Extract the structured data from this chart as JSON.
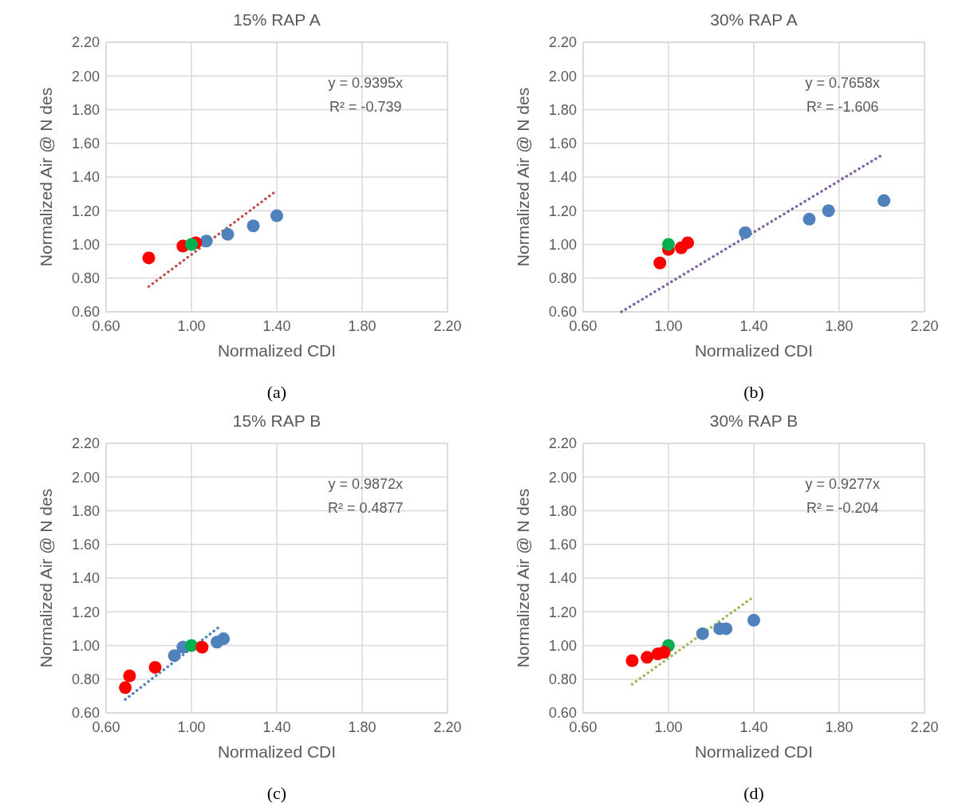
{
  "chart_data": [
    {
      "type": "scatter",
      "title": "15% RAP A",
      "xlabel": "Normalized CDI",
      "ylabel": "Normalized Air @ N des",
      "xlim": [
        0.6,
        2.2
      ],
      "xticks": [
        {
          "value": 0.6,
          "label": "0.60"
        },
        {
          "value": 1.0,
          "label": "1.00"
        },
        {
          "value": 1.4,
          "label": "1.40"
        },
        {
          "value": 1.8,
          "label": "1.80"
        },
        {
          "value": 2.2,
          "label": "2.20"
        }
      ],
      "ylim": [
        0.6,
        2.2
      ],
      "yticks": [
        {
          "value": 0.6,
          "label": "0.60"
        },
        {
          "value": 0.8,
          "label": "0.80"
        },
        {
          "value": 1.0,
          "label": "1.00"
        },
        {
          "value": 1.2,
          "label": "1.20"
        },
        {
          "value": 1.4,
          "label": "1.40"
        },
        {
          "value": 1.6,
          "label": "1.60"
        },
        {
          "value": 1.8,
          "label": "1.80"
        },
        {
          "value": 2.0,
          "label": "2.00"
        },
        {
          "value": 2.2,
          "label": "2.20"
        }
      ],
      "grid": true,
      "marker": "circle",
      "annotations": [
        "y = 0.9395x",
        "R² = -0.739",
        "(a)"
      ],
      "series": [
        {
          "type": "line",
          "color": "#c0504d",
          "line_style": "dotted",
          "marker": "none",
          "x": [
            0.8,
            1.4
          ],
          "values": [
            0.75,
            1.32
          ]
        },
        {
          "color": "#4f81bd",
          "x": [
            1.07,
            1.17,
            1.29,
            1.4
          ],
          "values": [
            1.02,
            1.06,
            1.11,
            1.17
          ]
        },
        {
          "color": "#ff0000",
          "x": [
            0.8,
            0.96,
            1.02
          ],
          "values": [
            0.92,
            0.99,
            1.01
          ]
        },
        {
          "color": "#00b050",
          "x": [
            1.0
          ],
          "values": [
            1.0
          ]
        }
      ]
    },
    {
      "type": "scatter",
      "title": "30% RAP A",
      "xlabel": "Normalized CDI",
      "ylabel": "Normalized Air @ N des",
      "xlim": [
        0.6,
        2.2
      ],
      "xticks": [
        {
          "value": 0.6,
          "label": "0.60"
        },
        {
          "value": 1.0,
          "label": "1.00"
        },
        {
          "value": 1.4,
          "label": "1.40"
        },
        {
          "value": 1.8,
          "label": "1.80"
        },
        {
          "value": 2.2,
          "label": "2.20"
        }
      ],
      "ylim": [
        0.6,
        2.2
      ],
      "yticks": [
        {
          "value": 0.6,
          "label": "0.60"
        },
        {
          "value": 0.8,
          "label": "0.80"
        },
        {
          "value": 1.0,
          "label": "1.00"
        },
        {
          "value": 1.2,
          "label": "1.20"
        },
        {
          "value": 1.4,
          "label": "1.40"
        },
        {
          "value": 1.6,
          "label": "1.60"
        },
        {
          "value": 1.8,
          "label": "1.80"
        },
        {
          "value": 2.0,
          "label": "2.00"
        },
        {
          "value": 2.2,
          "label": "2.20"
        }
      ],
      "grid": true,
      "marker": "circle",
      "annotations": [
        "y = 0.7658x",
        "R² = -1.606",
        "(b)"
      ],
      "series": [
        {
          "type": "line",
          "color": "#8064a2",
          "line_style": "dotted",
          "marker": "none",
          "x": [
            0.78,
            2.0
          ],
          "values": [
            0.6,
            1.53
          ]
        },
        {
          "color": "#4f81bd",
          "x": [
            1.36,
            1.66,
            1.75,
            2.01
          ],
          "values": [
            1.07,
            1.15,
            1.2,
            1.26
          ]
        },
        {
          "color": "#ff0000",
          "x": [
            0.96,
            1.0,
            1.06,
            1.09
          ],
          "values": [
            0.89,
            0.97,
            0.98,
            1.01
          ]
        },
        {
          "color": "#00b050",
          "x": [
            1.0
          ],
          "values": [
            1.0
          ]
        }
      ]
    },
    {
      "type": "scatter",
      "title": "15% RAP B",
      "xlabel": "Normalized CDI",
      "ylabel": "Normalized Air @ N des",
      "xlim": [
        0.6,
        2.2
      ],
      "xticks": [
        {
          "value": 0.6,
          "label": "0.60"
        },
        {
          "value": 1.0,
          "label": "1.00"
        },
        {
          "value": 1.4,
          "label": "1.40"
        },
        {
          "value": 1.8,
          "label": "1.80"
        },
        {
          "value": 2.2,
          "label": "2.20"
        }
      ],
      "ylim": [
        0.6,
        2.2
      ],
      "yticks": [
        {
          "value": 0.6,
          "label": "0.60"
        },
        {
          "value": 0.8,
          "label": "0.80"
        },
        {
          "value": 1.0,
          "label": "1.00"
        },
        {
          "value": 1.2,
          "label": "1.20"
        },
        {
          "value": 1.4,
          "label": "1.40"
        },
        {
          "value": 1.6,
          "label": "1.60"
        },
        {
          "value": 1.8,
          "label": "1.80"
        },
        {
          "value": 2.0,
          "label": "2.00"
        },
        {
          "value": 2.2,
          "label": "2.20"
        }
      ],
      "grid": true,
      "marker": "circle",
      "annotations": [
        "y = 0.9872x",
        "R² = 0.4877",
        "(c)"
      ],
      "series": [
        {
          "type": "line",
          "color": "#4f81bd",
          "line_style": "dotted",
          "marker": "none",
          "x": [
            0.69,
            1.14
          ],
          "values": [
            0.68,
            1.12
          ]
        },
        {
          "color": "#4f81bd",
          "x": [
            0.92,
            0.96,
            1.12,
            1.15
          ],
          "values": [
            0.94,
            0.99,
            1.02,
            1.04
          ]
        },
        {
          "color": "#00b050",
          "x": [
            1.0
          ],
          "values": [
            1.0
          ]
        },
        {
          "color": "#ff0000",
          "x": [
            0.69,
            0.71,
            0.83,
            1.05
          ],
          "values": [
            0.75,
            0.82,
            0.87,
            0.99
          ]
        }
      ]
    },
    {
      "type": "scatter",
      "title": "30% RAP B",
      "xlabel": "Normalized CDI",
      "ylabel": "Normalized Air @ N des",
      "xlim": [
        0.6,
        2.2
      ],
      "xticks": [
        {
          "value": 0.6,
          "label": "0.60"
        },
        {
          "value": 1.0,
          "label": "1.00"
        },
        {
          "value": 1.4,
          "label": "1.40"
        },
        {
          "value": 1.8,
          "label": "1.80"
        },
        {
          "value": 2.2,
          "label": "2.20"
        }
      ],
      "ylim": [
        0.6,
        2.2
      ],
      "yticks": [
        {
          "value": 0.6,
          "label": "0.60"
        },
        {
          "value": 0.8,
          "label": "0.80"
        },
        {
          "value": 1.0,
          "label": "1.00"
        },
        {
          "value": 1.2,
          "label": "1.20"
        },
        {
          "value": 1.4,
          "label": "1.40"
        },
        {
          "value": 1.6,
          "label": "1.60"
        },
        {
          "value": 1.8,
          "label": "1.80"
        },
        {
          "value": 2.0,
          "label": "2.00"
        },
        {
          "value": 2.2,
          "label": "2.20"
        }
      ],
      "grid": true,
      "marker": "circle",
      "annotations": [
        "y = 0.9277x",
        "R² = -0.204",
        "(d)"
      ],
      "series": [
        {
          "type": "line",
          "color": "#9bbb59",
          "line_style": "dotted",
          "marker": "none",
          "x": [
            0.83,
            1.4
          ],
          "values": [
            0.77,
            1.29
          ]
        },
        {
          "color": "#4f81bd",
          "x": [
            1.16,
            1.24,
            1.27,
            1.4
          ],
          "values": [
            1.07,
            1.1,
            1.1,
            1.15
          ]
        },
        {
          "color": "#00b050",
          "x": [
            1.0
          ],
          "values": [
            1.0
          ]
        },
        {
          "color": "#ff0000",
          "x": [
            0.83,
            0.9,
            0.95,
            0.98
          ],
          "values": [
            0.91,
            0.93,
            0.95,
            0.96
          ]
        }
      ]
    }
  ]
}
